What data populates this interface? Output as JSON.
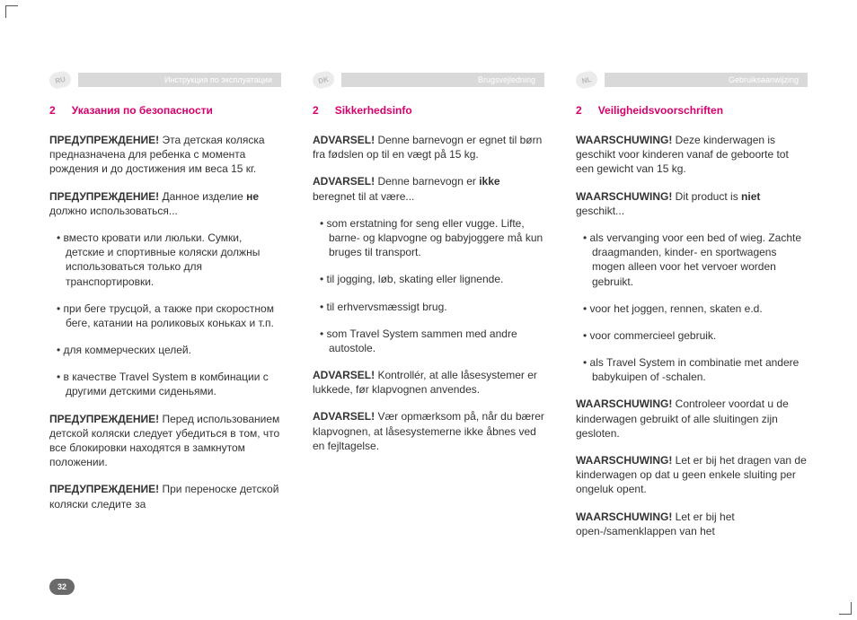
{
  "page_number": "32",
  "columns": [
    {
      "lang_code": "RU",
      "lang_title": "Инструкция по эксплуатации",
      "section_num": "2",
      "section_title": "Указания по безопасности",
      "blocks": [
        {
          "type": "p",
          "warn": "ПРЕДУПРЕЖДЕНИЕ!",
          "text": " Эта детская коляска предназначена для ребенка с момента рождения и до достижения им веса 15 кг."
        },
        {
          "type": "p",
          "warn": "ПРЕДУПРЕЖДЕНИЕ!",
          "text": " Данное изделие ",
          "bold": "не",
          "tail": " должно использоваться..."
        },
        {
          "type": "li",
          "text": "вместо кровати или люльки. Сумки, детские и спортивные коляски должны использоваться только для транспортировки."
        },
        {
          "type": "li",
          "text": "при беге трусцой, а также при скоростном беге, катании на роликовых коньках и т.п."
        },
        {
          "type": "li",
          "text": "для коммерческих целей."
        },
        {
          "type": "li",
          "text": "в качестве Travel System в комбинации с другими детскими сиденьями."
        },
        {
          "type": "p",
          "warn": "ПРЕДУПРЕЖДЕНИЕ!",
          "text": " Перед использованием детской коляски следует убедиться в том, что все блокировки находятся в замкнутом положении."
        },
        {
          "type": "p",
          "warn": "ПРЕДУПРЕЖДЕНИЕ!",
          "text": " При переноске детской коляски следите за"
        }
      ]
    },
    {
      "lang_code": "DK",
      "lang_title": "Brugsvejledning",
      "section_num": "2",
      "section_title": "Sikkerhedsinfo",
      "blocks": [
        {
          "type": "p",
          "warn": "ADVARSEL!",
          "text": " Denne barnevogn er egnet til børn fra fødslen op til en vægt på 15 kg."
        },
        {
          "type": "p",
          "warn": "ADVARSEL!",
          "text": " Denne barnevogn er ",
          "bold": "ikke",
          "tail": " beregnet til at være..."
        },
        {
          "type": "li",
          "text": "som erstatning for seng eller vugge. Lifte, barne- og klapvogne og babyjoggere må kun bruges til transport."
        },
        {
          "type": "li",
          "text": "til jogging, løb, skating eller lignende."
        },
        {
          "type": "li",
          "text": "til erhvervsmæssigt brug."
        },
        {
          "type": "li",
          "text": "som Travel System sammen med andre autostole."
        },
        {
          "type": "p",
          "warn": "ADVARSEL!",
          "text": " Kontrollér, at alle låsesystemer er lukkede, før klapvognen anvendes."
        },
        {
          "type": "p",
          "warn": "ADVARSEL!",
          "text": " Vær opmærksom på, når du bærer klapvognen, at låsesystemerne ikke åbnes ved en fejltagelse."
        }
      ]
    },
    {
      "lang_code": "NL",
      "lang_title": "Gebruiksaanwijzing",
      "section_num": "2",
      "section_title": "Veiligheidsvoorschriften",
      "blocks": [
        {
          "type": "p",
          "warn": "WAARSCHUWING!",
          "text": " Deze kinderwagen is geschikt voor kinderen vanaf de geboorte tot een gewicht van 15 kg."
        },
        {
          "type": "p",
          "warn": "WAARSCHUWING!",
          "text": " Dit product is ",
          "bold": "niet",
          "tail": " geschikt..."
        },
        {
          "type": "li",
          "text": "als vervanging voor een bed of wieg. Zachte draagmanden, kinder- en sportwagens mogen alleen voor het vervoer worden gebruikt."
        },
        {
          "type": "li",
          "text": "voor het joggen, rennen, skaten e.d."
        },
        {
          "type": "li",
          "text": "voor commercieel gebruik."
        },
        {
          "type": "li",
          "text": "als Travel System in combinatie met andere babykuipen of -schalen."
        },
        {
          "type": "p",
          "warn": "WAARSCHUWING!",
          "text": " Controleer voordat u de kinderwagen gebruikt of alle sluitingen zijn gesloten."
        },
        {
          "type": "p",
          "warn": "WAARSCHUWING!",
          "text": " Let er bij het dragen van de kinderwagen op dat u geen enkele sluiting per ongeluk opent."
        },
        {
          "type": "p",
          "warn": "WAARSCHUWING!",
          "text": " Let er bij het open-/samenklappen van het"
        }
      ]
    }
  ]
}
